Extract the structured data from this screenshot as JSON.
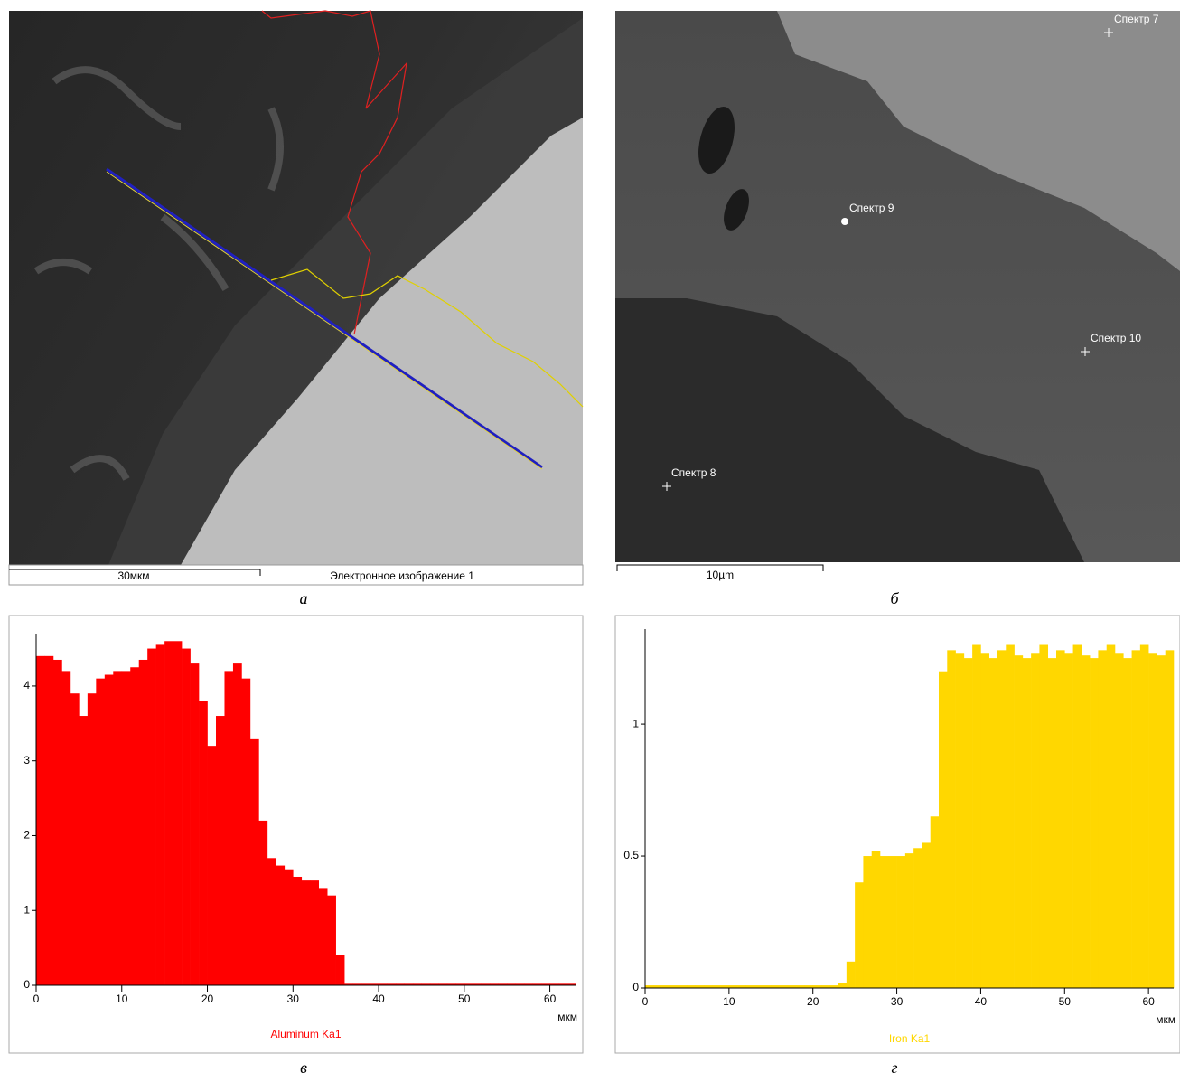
{
  "panels": [
    {
      "letter": "а",
      "scale_bar": "30мкм",
      "caption": "Электронное изображение 1"
    },
    {
      "letter": "б",
      "scale_bar": "10µm",
      "spectra": [
        "Спектр 7",
        "Спектр 9",
        "Спектр 10",
        "Спектр 8"
      ]
    },
    {
      "letter": "в"
    },
    {
      "letter": "г"
    }
  ],
  "chart_data": [
    {
      "type": "bar",
      "x_label": "мкм",
      "x": [
        0,
        1,
        2,
        3,
        4,
        5,
        6,
        7,
        8,
        9,
        10,
        11,
        12,
        13,
        14,
        15,
        16,
        17,
        18,
        19,
        20,
        21,
        22,
        23,
        24,
        25,
        26,
        27,
        28,
        29,
        30,
        31,
        32,
        33,
        34,
        35,
        36,
        37,
        38,
        39,
        40,
        41,
        42,
        43,
        44,
        45,
        46,
        47,
        48,
        49,
        50,
        51,
        52,
        53,
        54,
        55,
        56,
        57,
        58,
        59,
        60,
        61,
        62
      ],
      "series": [
        {
          "name": "Aluminum Ka1",
          "color": "#ff0000",
          "values": [
            4.4,
            4.4,
            4.35,
            4.2,
            3.9,
            3.6,
            3.9,
            4.1,
            4.15,
            4.2,
            4.2,
            4.25,
            4.35,
            4.5,
            4.55,
            4.6,
            4.6,
            4.5,
            4.3,
            3.8,
            3.2,
            3.6,
            4.2,
            4.3,
            4.1,
            3.3,
            2.2,
            1.7,
            1.6,
            1.55,
            1.45,
            1.4,
            1.4,
            1.3,
            1.2,
            0.4,
            0.02,
            0.02,
            0.02,
            0.02,
            0.02,
            0.02,
            0.02,
            0.02,
            0.02,
            0.02,
            0.02,
            0.02,
            0.02,
            0.02,
            0.02,
            0.02,
            0.02,
            0.02,
            0.02,
            0.02,
            0.02,
            0.02,
            0.02,
            0.02,
            0.02,
            0.02,
            0.02
          ]
        }
      ],
      "xlim": [
        0,
        63
      ],
      "xticks": [
        0,
        10,
        20,
        30,
        40,
        50,
        60
      ],
      "ylim": [
        0,
        4.7
      ],
      "yticks": [
        0,
        1,
        2,
        3,
        4
      ]
    },
    {
      "type": "bar",
      "x_label": "мкм",
      "x": [
        0,
        1,
        2,
        3,
        4,
        5,
        6,
        7,
        8,
        9,
        10,
        11,
        12,
        13,
        14,
        15,
        16,
        17,
        18,
        19,
        20,
        21,
        22,
        23,
        24,
        25,
        26,
        27,
        28,
        29,
        30,
        31,
        32,
        33,
        34,
        35,
        36,
        37,
        38,
        39,
        40,
        41,
        42,
        43,
        44,
        45,
        46,
        47,
        48,
        49,
        50,
        51,
        52,
        53,
        54,
        55,
        56,
        57,
        58,
        59,
        60,
        61,
        62
      ],
      "series": [
        {
          "name": "Iron Ka1",
          "color": "#ffd700",
          "values": [
            0.01,
            0.01,
            0.01,
            0.01,
            0.01,
            0.01,
            0.01,
            0.01,
            0.01,
            0.01,
            0.01,
            0.01,
            0.01,
            0.01,
            0.01,
            0.01,
            0.01,
            0.01,
            0.01,
            0.01,
            0.01,
            0.01,
            0.01,
            0.02,
            0.1,
            0.4,
            0.5,
            0.52,
            0.5,
            0.5,
            0.5,
            0.51,
            0.53,
            0.55,
            0.65,
            1.2,
            1.28,
            1.27,
            1.25,
            1.3,
            1.27,
            1.25,
            1.28,
            1.3,
            1.26,
            1.25,
            1.27,
            1.3,
            1.25,
            1.28,
            1.27,
            1.3,
            1.26,
            1.25,
            1.28,
            1.3,
            1.27,
            1.25,
            1.28,
            1.3,
            1.27,
            1.26,
            1.28
          ]
        }
      ],
      "xlim": [
        0,
        63
      ],
      "xticks": [
        0,
        10,
        20,
        30,
        40,
        50,
        60
      ],
      "ylim": [
        0,
        1.36
      ],
      "yticks": [
        0,
        0.5,
        1
      ]
    }
  ]
}
